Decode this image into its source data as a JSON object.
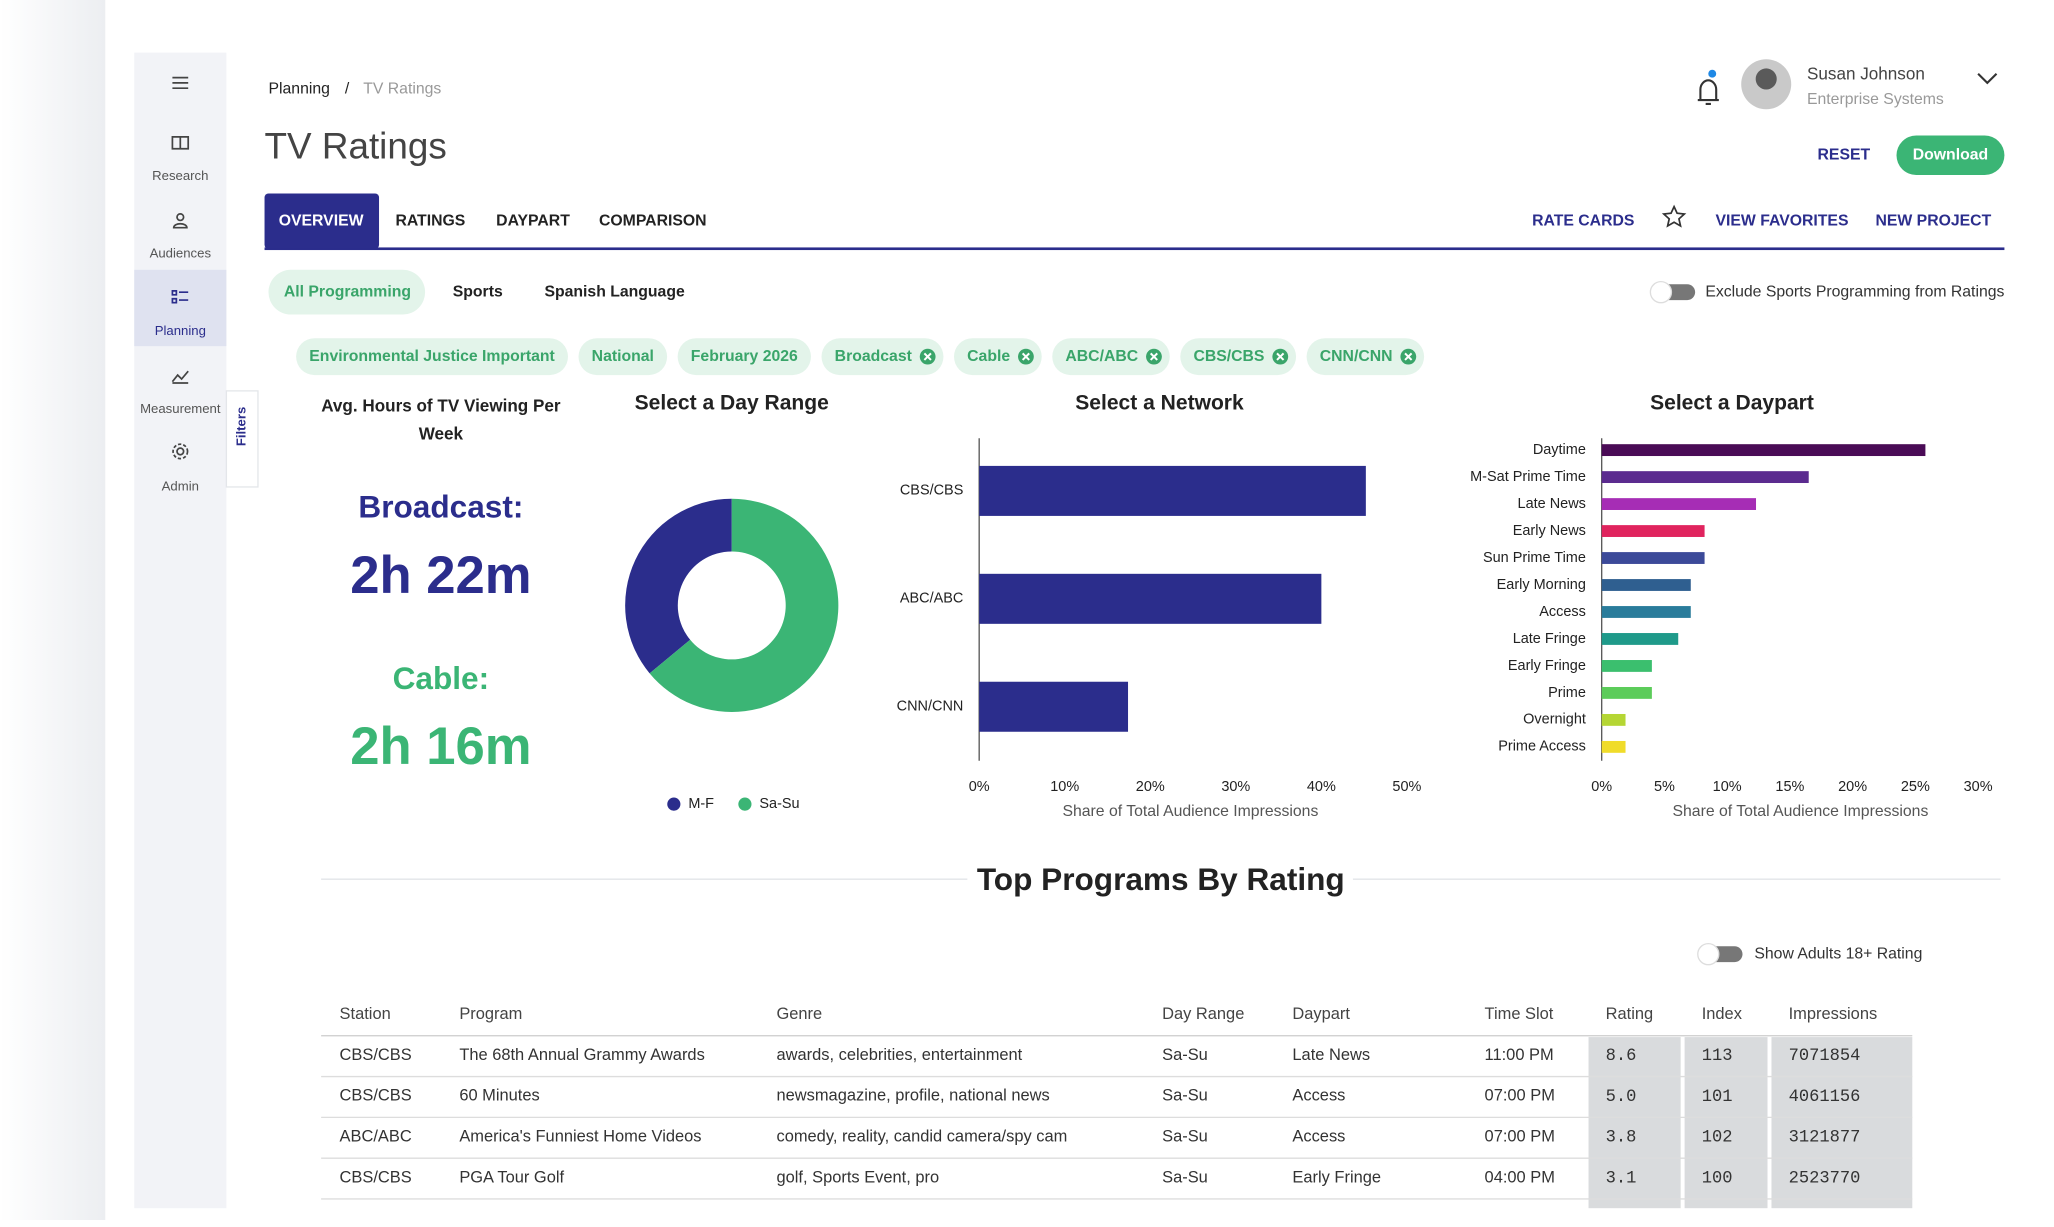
{
  "sidebar": {
    "items": [
      "Research",
      "Audiences",
      "Planning",
      "Measurement",
      "Admin"
    ],
    "active": "Planning",
    "filters_tab": "Filters"
  },
  "breadcrumb": {
    "items": [
      "Planning",
      "TV Ratings"
    ],
    "separator": "/"
  },
  "user": {
    "name": "Susan Johnson",
    "org": "Enterprise Systems"
  },
  "title": "TV Ratings",
  "actions": {
    "reset": "RESET",
    "download": "Download"
  },
  "tabs": [
    "OVERVIEW",
    "RATINGS",
    "DAYPART",
    "COMPARISON"
  ],
  "active_tab": "OVERVIEW",
  "tab_links": [
    "RATE CARDS",
    "VIEW FAVORITES",
    "NEW PROJECT"
  ],
  "programming_filters": [
    "All Programming",
    "Sports",
    "Spanish Language"
  ],
  "active_programming": "All Programming",
  "exclude_toggle": "Exclude Sports Programming from Ratings",
  "chips": [
    {
      "label": "Environmental Justice Important",
      "removable": false
    },
    {
      "label": "National",
      "removable": false
    },
    {
      "label": "February 2026",
      "removable": false
    },
    {
      "label": "Broadcast",
      "removable": true
    },
    {
      "label": "Cable",
      "removable": true
    },
    {
      "label": "ABC/ABC",
      "removable": true
    },
    {
      "label": "CBS/CBS",
      "removable": true
    },
    {
      "label": "CNN/CNN",
      "removable": true
    }
  ],
  "avg_hours": {
    "title": "Avg. Hours of TV Viewing Per Week",
    "items": [
      {
        "label": "Broadcast:",
        "value": "2h 22m",
        "color": "#2b2d8c"
      },
      {
        "label": "Cable:",
        "value": "2h 16m",
        "color": "#3bb575"
      }
    ]
  },
  "chart_data": [
    {
      "type": "donut",
      "title": "Select a Day Range",
      "categories": [
        "M-F",
        "Sa-Su"
      ],
      "values": [
        36,
        64
      ],
      "colors": [
        "#2b2d8c",
        "#3bb575"
      ]
    },
    {
      "type": "hbar",
      "title": "Select a Network",
      "xlabel": "Share of Total Audience Impressions",
      "categories": [
        "CBS/CBS",
        "ABC/ABC",
        "CNN/CNN"
      ],
      "values": [
        45.2,
        40,
        17.4
      ],
      "colors": [
        "#2b2d8c",
        "#2b2d8c",
        "#2b2d8c"
      ],
      "xlim": [
        0,
        50
      ],
      "xticks": [
        {
          "value": 0,
          "label": "0%"
        },
        {
          "value": 10,
          "label": "10%"
        },
        {
          "value": 20,
          "label": "20%"
        },
        {
          "value": 30,
          "label": "30%"
        },
        {
          "value": 40,
          "label": "40%"
        },
        {
          "value": 50,
          "label": "50%"
        }
      ]
    },
    {
      "type": "hbar",
      "title": "Select a Daypart",
      "xlabel": "Share of Total Audience Impressions",
      "categories": [
        "Daytime",
        "M-Sat Prime Time",
        "Late News",
        "Early News",
        "Sun Prime Time",
        "Early Morning",
        "Access",
        "Late Fringe",
        "Early Fringe",
        "Prime",
        "Overnight",
        "Prime Access"
      ],
      "values": [
        25.8,
        16.5,
        12.3,
        8.2,
        8.2,
        7.1,
        7.1,
        6.1,
        4.0,
        4.0,
        1.9,
        1.9
      ],
      "colors": [
        "#4a0b56",
        "#5b2b8f",
        "#a62db5",
        "#e0245e",
        "#3c4a99",
        "#2f5f90",
        "#2a7c9b",
        "#1f9a8a",
        "#3bbf6e",
        "#5ccc5a",
        "#b5d634",
        "#f0dc2a"
      ],
      "xlim": [
        0,
        30
      ],
      "xticks": [
        {
          "value": 0,
          "label": "0%"
        },
        {
          "value": 5,
          "label": "5%"
        },
        {
          "value": 10,
          "label": "10%"
        },
        {
          "value": 15,
          "label": "15%"
        },
        {
          "value": 20,
          "label": "20%"
        },
        {
          "value": 25,
          "label": "25%"
        },
        {
          "value": 30,
          "label": "30%"
        }
      ]
    }
  ],
  "top_programs": {
    "title": "Top Programs By Rating",
    "toggle": "Show Adults 18+ Rating",
    "columns": [
      "Station",
      "Program",
      "Genre",
      "Day Range",
      "Daypart",
      "Time Slot",
      "Rating",
      "Index",
      "Impressions"
    ],
    "rows": [
      [
        "CBS/CBS",
        "The 68th Annual Grammy Awards",
        "awards, celebrities, entertainment",
        "Sa-Su",
        "Late News",
        "11:00 PM",
        "8.6",
        "113",
        "7071854"
      ],
      [
        "CBS/CBS",
        "60 Minutes",
        "newsmagazine, profile, national news",
        "Sa-Su",
        "Access",
        "07:00 PM",
        "5.0",
        "101",
        "4061156"
      ],
      [
        "ABC/ABC",
        "America's Funniest Home Videos",
        "comedy, reality, candid camera/spy cam",
        "Sa-Su",
        "Access",
        "07:00 PM",
        "3.8",
        "102",
        "3121877"
      ],
      [
        "CBS/CBS",
        "PGA Tour Golf",
        "golf, Sports Event, pro",
        "Sa-Su",
        "Early Fringe",
        "04:00 PM",
        "3.1",
        "100",
        "2523770"
      ]
    ]
  }
}
